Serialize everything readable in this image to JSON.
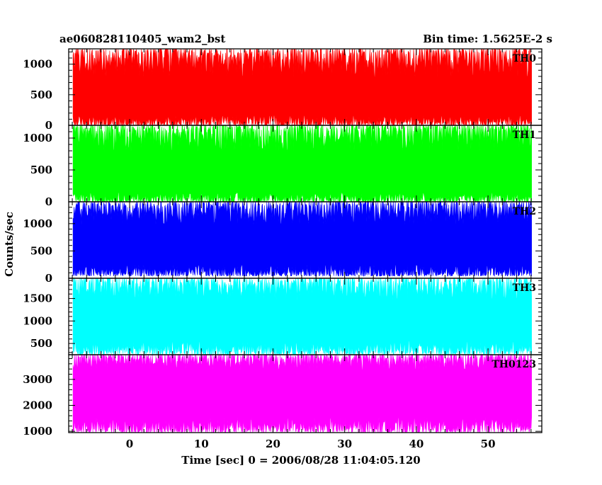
{
  "chart_data": {
    "type": "line",
    "title": "ae060828110405_wam2_bst",
    "subtitle": "Bin time: 1.5625E-2 s",
    "xlabel": "Time [sec] 0 = 2006/08/28 11:04:05.120",
    "ylabel": "Counts/sec",
    "xlim": [
      -8.5,
      57.5
    ],
    "x_ticks": [
      0,
      10,
      20,
      30,
      40,
      50
    ],
    "x_tick_labels": [
      "0",
      "10",
      "20",
      "30",
      "40",
      "50"
    ],
    "x_data_range": [
      -7.9,
      56.1
    ],
    "series": [
      {
        "name": "TH0",
        "color": "#ff0000",
        "ylim": [
          0,
          1250
        ],
        "yticks": [
          0,
          500,
          1000
        ],
        "ytick_labels": [
          "0",
          "500",
          "1000"
        ],
        "min_range": [
          0,
          170
        ],
        "max_range": [
          790,
          1250
        ]
      },
      {
        "name": "TH1",
        "color": "#00ff00",
        "ylim": [
          0,
          1200
        ],
        "yticks": [
          0,
          500,
          1000
        ],
        "ytick_labels": [
          "0",
          "500",
          "1000"
        ],
        "min_range": [
          0,
          150
        ],
        "max_range": [
          780,
          1200
        ]
      },
      {
        "name": "TH2",
        "color": "#0000ff",
        "ylim": [
          0,
          1400
        ],
        "yticks": [
          0,
          500,
          1000
        ],
        "ytick_labels": [
          "0",
          "500",
          "1000"
        ],
        "min_range": [
          40,
          250
        ],
        "max_range": [
          980,
          1400
        ]
      },
      {
        "name": "TH3",
        "color": "#00ffff",
        "ylim": [
          250,
          1950
        ],
        "yticks": [
          500,
          1000,
          1500
        ],
        "ytick_labels": [
          "500",
          "1000",
          "1500"
        ],
        "min_range": [
          260,
          560
        ],
        "max_range": [
          1450,
          1950
        ]
      },
      {
        "name": "TH0123",
        "color": "#ff00ff",
        "ylim": [
          950,
          3950
        ],
        "yticks": [
          1000,
          2000,
          3000
        ],
        "ytick_labels": [
          "1000",
          "2000",
          "3000"
        ],
        "min_range": [
          960,
          1550
        ],
        "max_range": [
          3350,
          3950
        ]
      }
    ]
  }
}
